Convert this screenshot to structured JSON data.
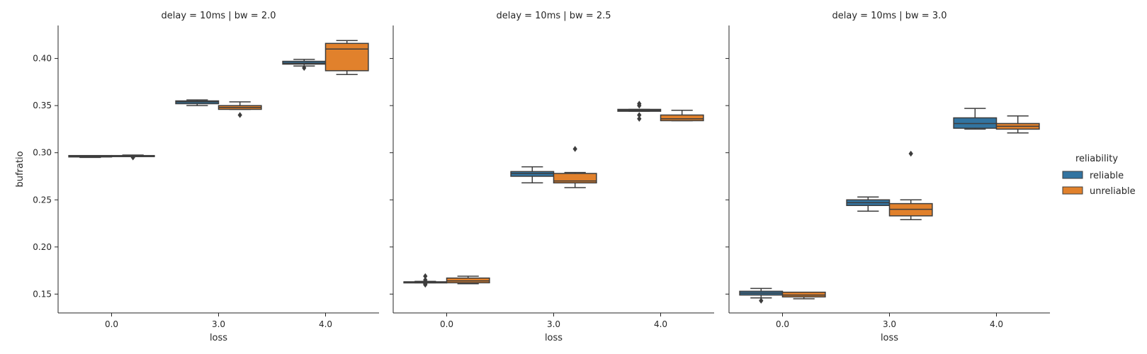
{
  "chart_data": {
    "type": "box",
    "ylabel": "bufratio",
    "xlabel": "loss",
    "ylim": [
      0.13,
      0.435
    ],
    "yticks": [
      "0.15",
      "0.20",
      "0.25",
      "0.30",
      "0.35",
      "0.40"
    ],
    "categories": [
      "0.0",
      "3.0",
      "4.0"
    ],
    "grid": false,
    "legend": {
      "title": "reliability",
      "placement": "right",
      "entries": [
        {
          "name": "reliable",
          "color": "#3274a1"
        },
        {
          "name": "unreliable",
          "color": "#e1812c"
        }
      ]
    },
    "facets": [
      {
        "title": "delay = 10ms | bw = 2.0",
        "groups": [
          {
            "category": "0.0",
            "series": "reliable",
            "whislo": 0.295,
            "q1": 0.2955,
            "med": 0.2965,
            "q3": 0.297,
            "whishi": 0.297,
            "fliers": []
          },
          {
            "category": "0.0",
            "series": "unreliable",
            "whislo": 0.2965,
            "q1": 0.2965,
            "med": 0.297,
            "q3": 0.297,
            "whishi": 0.2975,
            "fliers": [
              0.295
            ]
          },
          {
            "category": "3.0",
            "series": "reliable",
            "whislo": 0.35,
            "q1": 0.352,
            "med": 0.354,
            "q3": 0.355,
            "whishi": 0.356,
            "fliers": []
          },
          {
            "category": "3.0",
            "series": "unreliable",
            "whislo": 0.346,
            "q1": 0.346,
            "med": 0.348,
            "q3": 0.35,
            "whishi": 0.354,
            "fliers": [
              0.34
            ]
          },
          {
            "category": "4.0",
            "series": "reliable",
            "whislo": 0.392,
            "q1": 0.394,
            "med": 0.395,
            "q3": 0.397,
            "whishi": 0.399,
            "fliers": [
              0.39
            ]
          },
          {
            "category": "4.0",
            "series": "unreliable",
            "whislo": 0.383,
            "q1": 0.387,
            "med": 0.41,
            "q3": 0.416,
            "whishi": 0.419,
            "fliers": []
          }
        ]
      },
      {
        "title": "delay = 10ms | bw = 2.5",
        "groups": [
          {
            "category": "0.0",
            "series": "reliable",
            "whislo": 0.162,
            "q1": 0.1625,
            "med": 0.163,
            "q3": 0.163,
            "whishi": 0.1635,
            "fliers": [
              0.169,
              0.165,
              0.161,
              0.16
            ]
          },
          {
            "category": "0.0",
            "series": "unreliable",
            "whislo": 0.161,
            "q1": 0.162,
            "med": 0.164,
            "q3": 0.167,
            "whishi": 0.169,
            "fliers": []
          },
          {
            "category": "3.0",
            "series": "reliable",
            "whislo": 0.268,
            "q1": 0.275,
            "med": 0.278,
            "q3": 0.28,
            "whishi": 0.285,
            "fliers": []
          },
          {
            "category": "3.0",
            "series": "unreliable",
            "whislo": 0.263,
            "q1": 0.268,
            "med": 0.27,
            "q3": 0.278,
            "whishi": 0.279,
            "fliers": [
              0.304
            ]
          },
          {
            "category": "4.0",
            "series": "reliable",
            "whislo": 0.344,
            "q1": 0.344,
            "med": 0.345,
            "q3": 0.346,
            "whishi": 0.346,
            "fliers": [
              0.352,
              0.35,
              0.34,
              0.336
            ]
          },
          {
            "category": "4.0",
            "series": "unreliable",
            "whislo": 0.334,
            "q1": 0.334,
            "med": 0.336,
            "q3": 0.34,
            "whishi": 0.345,
            "fliers": []
          }
        ]
      },
      {
        "title": "delay = 10ms | bw = 3.0",
        "groups": [
          {
            "category": "0.0",
            "series": "reliable",
            "whislo": 0.146,
            "q1": 0.149,
            "med": 0.151,
            "q3": 0.153,
            "whishi": 0.156,
            "fliers": [
              0.143
            ]
          },
          {
            "category": "0.0",
            "series": "unreliable",
            "whislo": 0.145,
            "q1": 0.147,
            "med": 0.149,
            "q3": 0.152,
            "whishi": 0.152,
            "fliers": []
          },
          {
            "category": "3.0",
            "series": "reliable",
            "whislo": 0.238,
            "q1": 0.244,
            "med": 0.247,
            "q3": 0.25,
            "whishi": 0.253,
            "fliers": []
          },
          {
            "category": "3.0",
            "series": "unreliable",
            "whislo": 0.229,
            "q1": 0.233,
            "med": 0.24,
            "q3": 0.246,
            "whishi": 0.25,
            "fliers": [
              0.299
            ]
          },
          {
            "category": "4.0",
            "series": "reliable",
            "whislo": 0.325,
            "q1": 0.326,
            "med": 0.331,
            "q3": 0.337,
            "whishi": 0.347,
            "fliers": []
          },
          {
            "category": "4.0",
            "series": "unreliable",
            "whislo": 0.321,
            "q1": 0.325,
            "med": 0.328,
            "q3": 0.331,
            "whishi": 0.339,
            "fliers": []
          }
        ]
      }
    ]
  }
}
